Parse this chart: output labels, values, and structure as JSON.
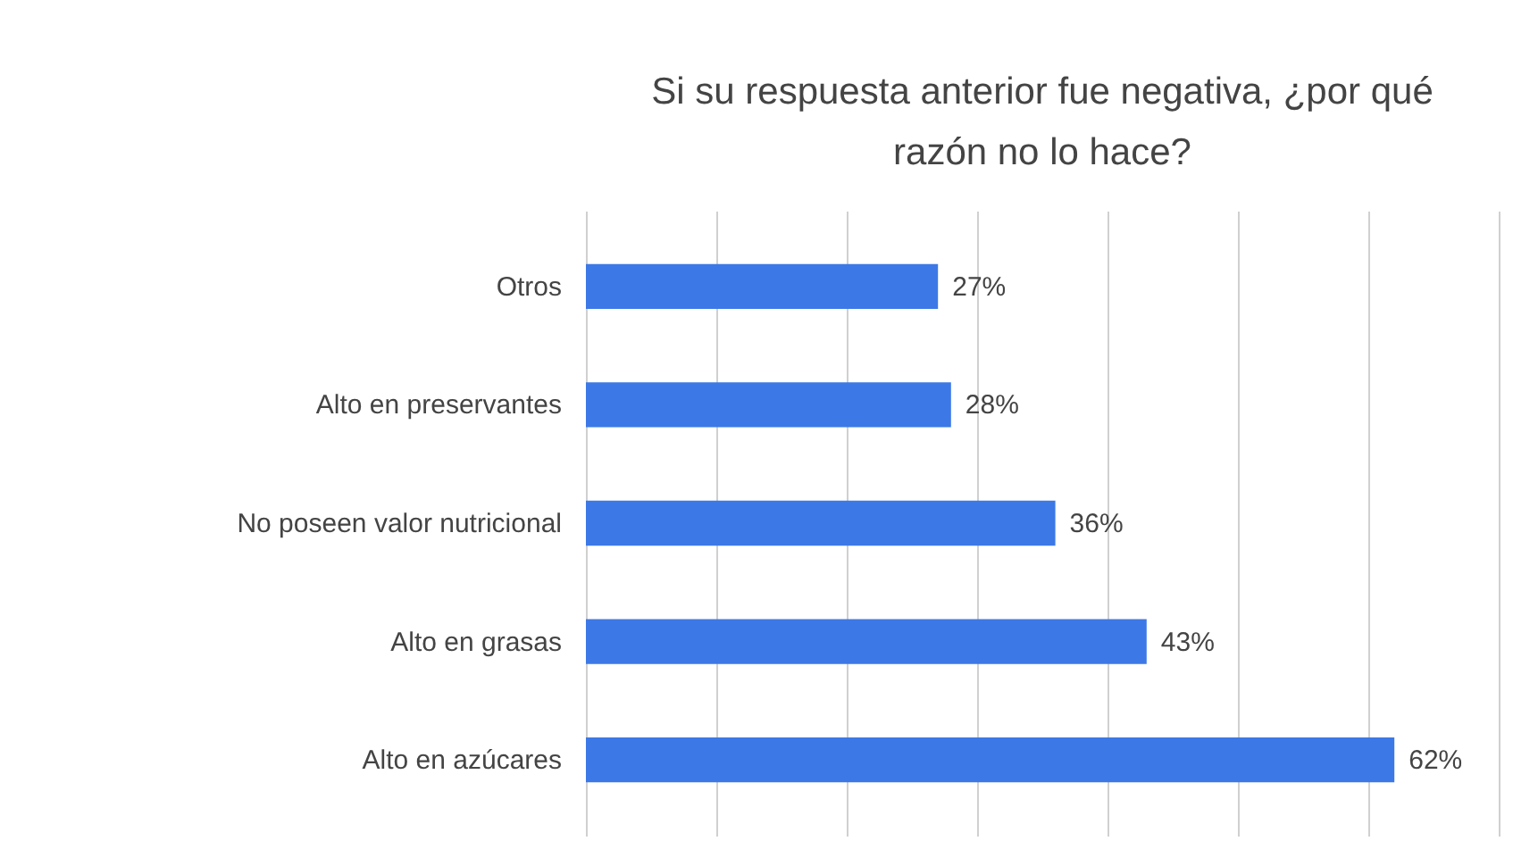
{
  "chart_data": {
    "type": "bar",
    "orientation": "horizontal",
    "title": "Si su respuesta anterior fue negativa, ¿por qué razón no lo hace?",
    "categories": [
      "Otros",
      "Alto en preservantes",
      "No poseen valor nutricional",
      "Alto en grasas",
      "Alto en azúcares"
    ],
    "values": [
      27,
      28,
      36,
      43,
      62
    ],
    "color": "#3c78e6",
    "value_labels": [
      "27%",
      "28%",
      "36%",
      "43%",
      "62%"
    ],
    "xlim": [
      0,
      70
    ],
    "xticks": [
      {
        "value": 0,
        "label": null
      },
      {
        "value": 10,
        "label": null
      },
      {
        "value": 20,
        "label": null
      },
      {
        "value": 30,
        "label": null
      },
      {
        "value": 40,
        "label": null
      },
      {
        "value": 50,
        "label": null
      },
      {
        "value": 60,
        "label": null
      },
      {
        "value": 70,
        "label": null
      }
    ],
    "grid": "x",
    "tick_labels": "y"
  }
}
